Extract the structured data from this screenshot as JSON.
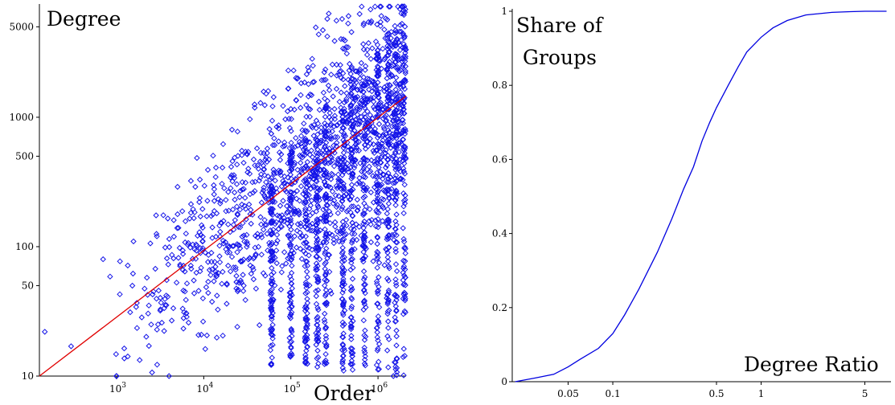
{
  "chart_data": [
    {
      "type": "scatter",
      "title": "",
      "xlabel": "Order",
      "ylabel": "Degree",
      "xscale": "log",
      "yscale": "log",
      "xlim": [
        130,
        2100000
      ],
      "ylim": [
        10,
        7500
      ],
      "x_ticks": [
        {
          "base": "10",
          "exp": "3",
          "value": 1000
        },
        {
          "base": "10",
          "exp": "4",
          "value": 10000
        },
        {
          "base": "10",
          "exp": "5",
          "value": 100000
        },
        {
          "base": "10",
          "exp": "6",
          "value": 1000000
        }
      ],
      "y_ticks": [
        "10",
        "50",
        "100",
        "500",
        "1000",
        "5000"
      ],
      "y_tick_values": [
        10,
        50,
        100,
        500,
        1000,
        5000
      ],
      "marker": "diamond",
      "series_color": "#1414e8",
      "fit_color": "#e00000",
      "fit_line": {
        "x": [
          130,
          2100000
        ],
        "y": [
          10,
          1460
        ]
      },
      "notable_points": [
        {
          "x": 150,
          "y": 22
        },
        {
          "x": 300,
          "y": 17
        },
        {
          "x": 700,
          "y": 80
        },
        {
          "x": 1000,
          "y": 10
        },
        {
          "x": 4000,
          "y": 10
        },
        {
          "x": 5000,
          "y": 290
        },
        {
          "x": 8000,
          "y": 290
        },
        {
          "x": 120000,
          "y": 2000
        },
        {
          "x": 400000,
          "y": 4000
        },
        {
          "x": 1500000,
          "y": 10
        },
        {
          "x": 2000000,
          "y": 7200
        }
      ],
      "columns": [
        {
          "x": 60000,
          "ymin": 12,
          "ymax": 350
        },
        {
          "x": 100000,
          "ymin": 13,
          "ymax": 600
        },
        {
          "x": 150000,
          "ymin": 12,
          "ymax": 800
        },
        {
          "x": 200000,
          "ymin": 11,
          "ymax": 1000
        },
        {
          "x": 250000,
          "ymin": 11,
          "ymax": 1300
        },
        {
          "x": 400000,
          "ymin": 11,
          "ymax": 1500
        },
        {
          "x": 500000,
          "ymin": 11,
          "ymax": 2500
        },
        {
          "x": 700000,
          "ymin": 11,
          "ymax": 2200
        },
        {
          "x": 1000000,
          "ymin": 11,
          "ymax": 3500
        },
        {
          "x": 1300000,
          "ymin": 11,
          "ymax": 5000
        },
        {
          "x": 1600000,
          "ymin": 10,
          "ymax": 4000
        },
        {
          "x": 2000000,
          "ymin": 10,
          "ymax": 7200
        }
      ]
    },
    {
      "type": "line",
      "title": "",
      "xlabel": "Degree Ratio",
      "ylabel_line1": "Share of",
      "ylabel_line2": "Groups",
      "xscale": "log",
      "xlim": [
        0.021,
        7.5
      ],
      "ylim": [
        0,
        1
      ],
      "x_ticks": [
        "0.05",
        "0.1",
        "0.5",
        "1",
        "5"
      ],
      "x_tick_values": [
        0.05,
        0.1,
        0.5,
        1,
        5
      ],
      "y_ticks": [
        "0",
        "0.2",
        "0.4",
        "0.6",
        "0.8",
        "1"
      ],
      "y_tick_values": [
        0,
        0.2,
        0.4,
        0.6,
        0.8,
        1
      ],
      "series_color": "#0000e0",
      "x": [
        0.022,
        0.03,
        0.04,
        0.05,
        0.06,
        0.08,
        0.1,
        0.12,
        0.15,
        0.2,
        0.25,
        0.3,
        0.35,
        0.4,
        0.45,
        0.5,
        0.6,
        0.7,
        0.8,
        1.0,
        1.2,
        1.5,
        2.0,
        3.0,
        4.0,
        5.0,
        7.0
      ],
      "y": [
        0.0,
        0.01,
        0.02,
        0.04,
        0.06,
        0.09,
        0.13,
        0.18,
        0.25,
        0.35,
        0.44,
        0.52,
        0.58,
        0.65,
        0.7,
        0.74,
        0.8,
        0.85,
        0.89,
        0.93,
        0.955,
        0.975,
        0.99,
        0.997,
        0.999,
        1.0,
        1.0
      ]
    }
  ]
}
